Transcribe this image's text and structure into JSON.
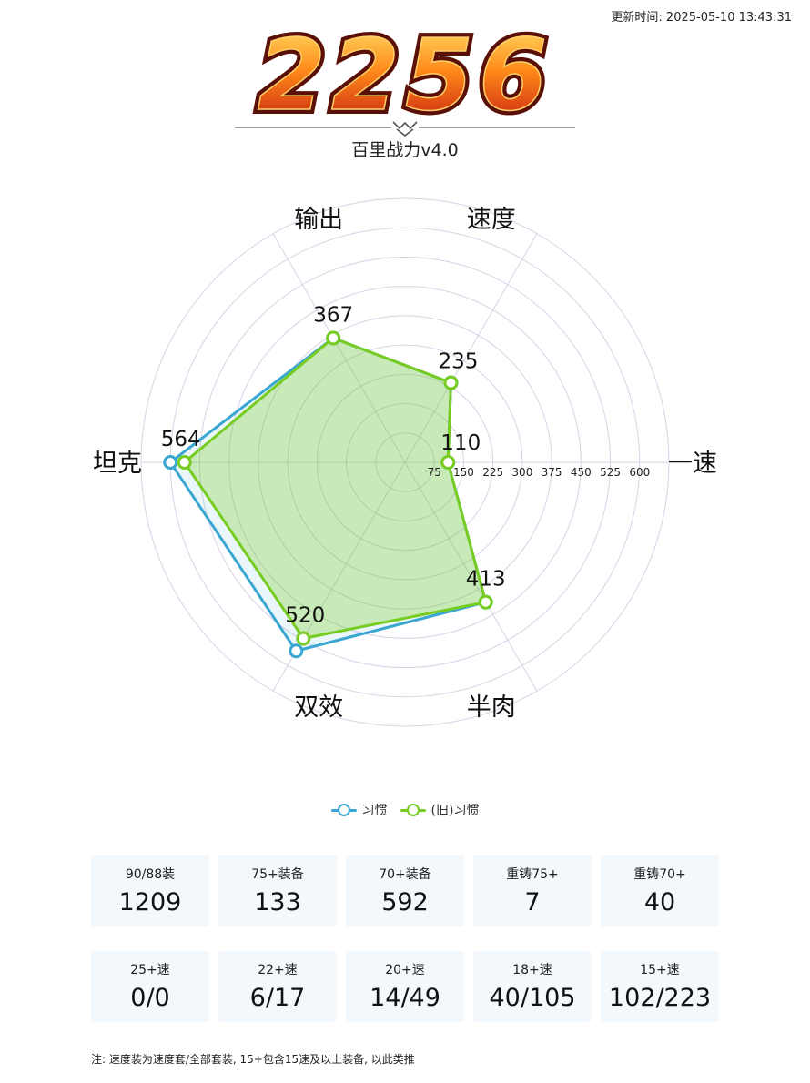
{
  "update_time": "更新时间: 2025-05-10 13:43:31",
  "logo": {
    "text": "2256"
  },
  "subtitle": "百里战力v4.0",
  "chart_data": {
    "type": "radar",
    "axes": [
      "一速",
      "速度",
      "输出",
      "坦克",
      "双效",
      "半肉"
    ],
    "ticks": [
      75,
      150,
      225,
      300,
      375,
      450,
      525,
      600
    ],
    "range": [
      0,
      675
    ],
    "data_labels": [
      110,
      235,
      367,
      564,
      520,
      413
    ],
    "series": [
      {
        "name": "习惯",
        "color": "#3aa6d2",
        "values": [
          110,
          235,
          367,
          600,
          557,
          413
        ]
      },
      {
        "name": "(旧)习惯",
        "color": "#77cc22",
        "values": [
          110,
          235,
          367,
          564,
          520,
          413
        ]
      }
    ],
    "legend_position": "bottom"
  },
  "stats_row1": [
    {
      "label": "90/88装",
      "value": "1209"
    },
    {
      "label": "75+装备",
      "value": "133"
    },
    {
      "label": "70+装备",
      "value": "592"
    },
    {
      "label": "重铸75+",
      "value": "7"
    },
    {
      "label": "重铸70+",
      "value": "40"
    }
  ],
  "stats_row2": [
    {
      "label": "25+速",
      "value": "0/0"
    },
    {
      "label": "22+速",
      "value": "6/17"
    },
    {
      "label": "20+速",
      "value": "14/49"
    },
    {
      "label": "18+速",
      "value": "40/105"
    },
    {
      "label": "15+速",
      "value": "102/223"
    }
  ],
  "note": "注: 速度装为速度套/全部套装, 15+包含15速及以上装备, 以此类推"
}
